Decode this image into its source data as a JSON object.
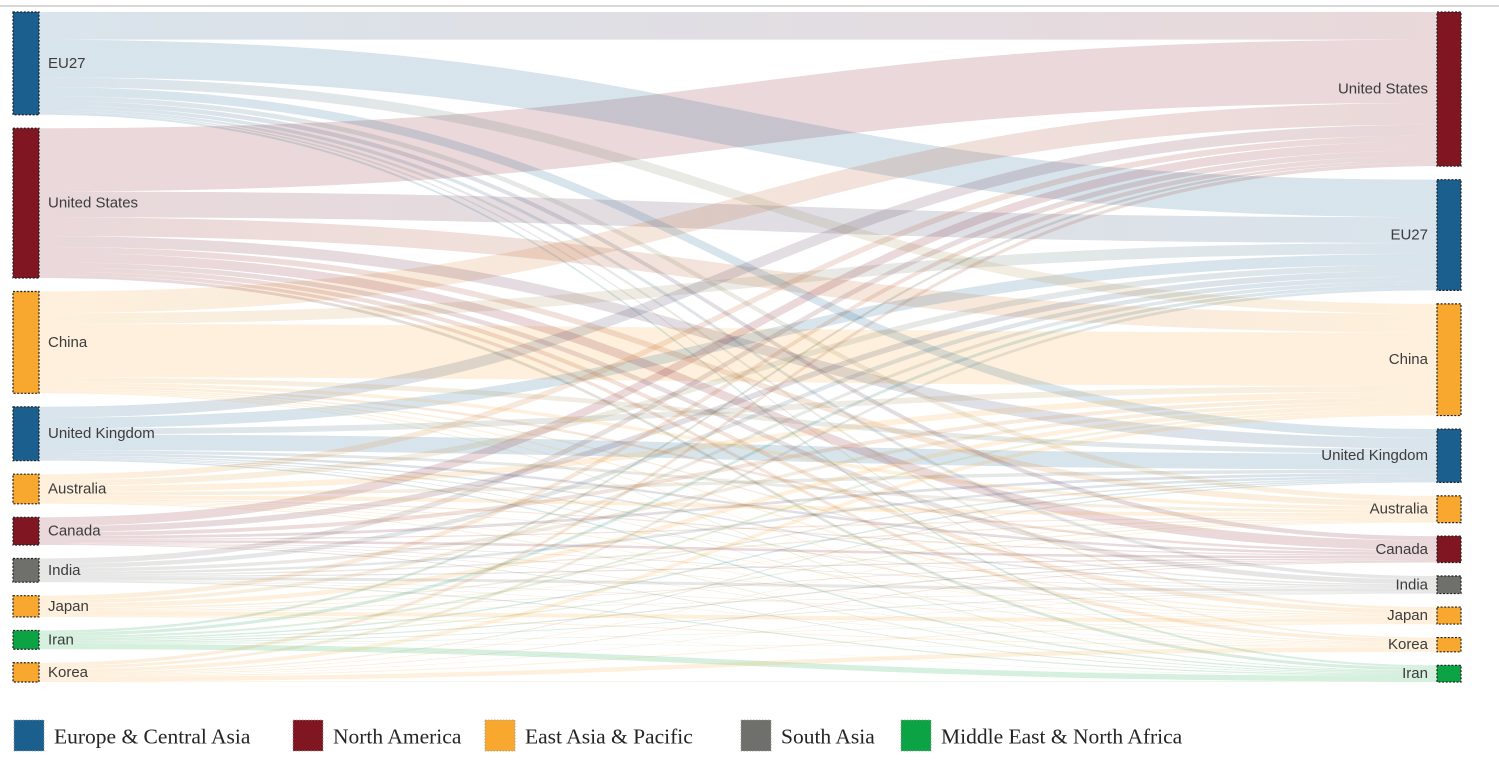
{
  "chart_data": {
    "type": "sankey",
    "orientation": "left-to-right",
    "title": "",
    "value_note": "No numeric labels are shown in the figure; link values are relative units estimated from ribbon thickness (≈ pixels of node height).",
    "nodes": [
      {
        "id": "eu27",
        "label": "EU27",
        "region": "europe_central_asia"
      },
      {
        "id": "usa",
        "label": "United States",
        "region": "north_america"
      },
      {
        "id": "china",
        "label": "China",
        "region": "east_asia_pacific"
      },
      {
        "id": "uk",
        "label": "United Kingdom",
        "region": "europe_central_asia"
      },
      {
        "id": "australia",
        "label": "Australia",
        "region": "east_asia_pacific"
      },
      {
        "id": "canada",
        "label": "Canada",
        "region": "north_america"
      },
      {
        "id": "india",
        "label": "India",
        "region": "south_asia"
      },
      {
        "id": "japan",
        "label": "Japan",
        "region": "east_asia_pacific"
      },
      {
        "id": "iran",
        "label": "Iran",
        "region": "middle_east_north_africa"
      },
      {
        "id": "korea",
        "label": "Korea",
        "region": "east_asia_pacific"
      }
    ],
    "left_order": [
      "eu27",
      "usa",
      "china",
      "uk",
      "australia",
      "canada",
      "india",
      "japan",
      "iran",
      "korea"
    ],
    "right_order": [
      "usa",
      "eu27",
      "china",
      "uk",
      "australia",
      "canada",
      "india",
      "japan",
      "korea",
      "iran"
    ],
    "flow_matrix": {
      "row_is_source": true,
      "column_order": [
        "eu27",
        "usa",
        "china",
        "uk",
        "australia",
        "canada",
        "india",
        "japan",
        "iran",
        "korea"
      ],
      "rows": {
        "eu27": [
          38,
          28,
          10,
          9,
          5,
          4.5,
          3.5,
          2.5,
          2,
          1.5
        ],
        "usa": [
          26,
          64,
          19,
          11,
          6,
          9.5,
          5,
          4.5,
          3,
          3.5
        ],
        "china": [
          11,
          22,
          54,
          5,
          3.5,
          2.5,
          1.5,
          1.5,
          1,
          1
        ],
        "uk": [
          11,
          11,
          6,
          16,
          3,
          2.5,
          1.5,
          1.2,
          1.5,
          0.8
        ],
        "australia": [
          6,
          6,
          6,
          3.5,
          4,
          1.2,
          0.8,
          0.8,
          1,
          0.7
        ],
        "canada": [
          6,
          9,
          4,
          2.8,
          1.2,
          2.5,
          0.6,
          0.6,
          0.8,
          0.5
        ],
        "india": [
          4.5,
          5.5,
          3.5,
          2.5,
          1.5,
          1.2,
          3,
          0.6,
          1.2,
          0.5
        ],
        "japan": [
          3.5,
          4.5,
          4.5,
          1.5,
          0.8,
          0.8,
          0.6,
          4,
          0.3,
          1
        ],
        "iran": [
          3.2,
          2.5,
          2.2,
          1.5,
          1.2,
          1.2,
          0.8,
          0.5,
          5.5,
          0.4
        ],
        "korea": [
          2.8,
          3.5,
          3.8,
          1.2,
          0.8,
          0.8,
          0.5,
          1,
          0.6,
          4.5
        ]
      }
    },
    "region_colors": {
      "europe_central_asia": "#1B5F8F",
      "north_america": "#801622",
      "east_asia_pacific": "#F9A82F",
      "south_asia": "#6F6F6C",
      "middle_east_north_africa": "#0CA344"
    },
    "link_style": "gradient from source region color to target region color, low opacity",
    "legend_position": "bottom",
    "grid": false
  },
  "legend": {
    "items": [
      {
        "label": "Europe & Central Asia",
        "region": "europe_central_asia"
      },
      {
        "label": "North America",
        "region": "north_america"
      },
      {
        "label": "East Asia & Pacific",
        "region": "east_asia_pacific"
      },
      {
        "label": "South Asia",
        "region": "south_asia"
      },
      {
        "label": "Middle East & North Africa",
        "region": "middle_east_north_africa"
      }
    ]
  }
}
